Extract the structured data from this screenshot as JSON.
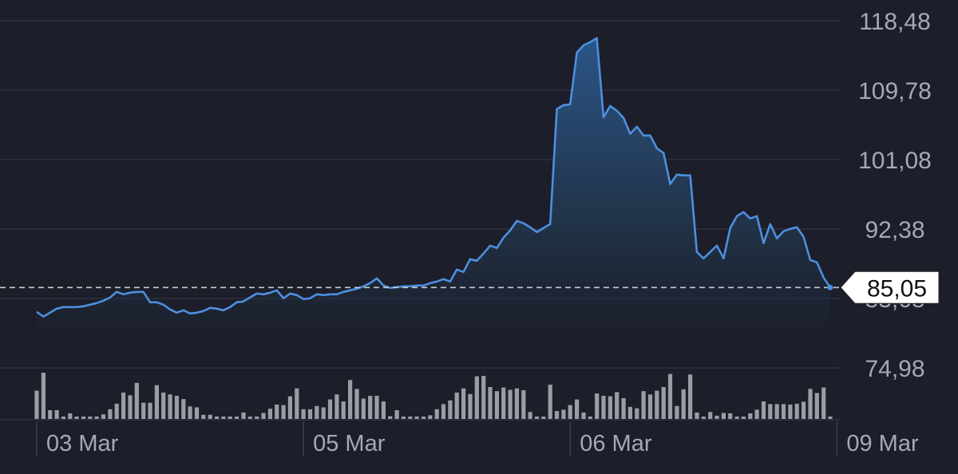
{
  "chart_data": {
    "type": "line",
    "grid": true,
    "ylim": [
      74.98,
      118.48
    ],
    "y_ticks": [
      "118,48",
      "109,78",
      "101,08",
      "92,38",
      "83,68",
      "74,98"
    ],
    "x_ticks": [
      {
        "label": "03 Mar",
        "index": 0
      },
      {
        "label": "05 Mar",
        "index": 40
      },
      {
        "label": "06 Mar",
        "index": 80
      },
      {
        "label": "09 Mar",
        "index": 120
      }
    ],
    "last_value": 85.05,
    "last_value_label": "85,05",
    "colors": {
      "line": "#4d8fe0",
      "volume": "#9a9ca6",
      "grid": "#2e3140",
      "label_bg": "#ffffff"
    },
    "price": [
      82.0,
      81.4,
      81.9,
      82.4,
      82.6,
      82.6,
      82.6,
      82.7,
      82.9,
      83.1,
      83.4,
      83.8,
      84.5,
      84.2,
      84.4,
      84.5,
      84.5,
      83.2,
      83.2,
      82.9,
      82.3,
      81.9,
      82.2,
      81.8,
      81.9,
      82.1,
      82.5,
      82.4,
      82.2,
      82.6,
      83.2,
      83.3,
      83.8,
      84.3,
      84.2,
      84.4,
      84.7,
      83.7,
      84.3,
      84.1,
      83.6,
      83.7,
      84.2,
      84.1,
      84.2,
      84.2,
      84.5,
      84.7,
      84.9,
      85.2,
      85.6,
      86.2,
      85.3,
      85.0,
      85.1,
      85.2,
      85.2,
      85.3,
      85.3,
      85.6,
      85.8,
      86.1,
      85.8,
      87.3,
      87.0,
      88.6,
      88.4,
      89.3,
      90.3,
      90.0,
      91.3,
      92.2,
      93.4,
      93.1,
      92.6,
      92.0,
      92.5,
      93.0,
      107.4,
      107.9,
      108.0,
      114.5,
      115.4,
      115.8,
      116.3,
      106.4,
      107.8,
      107.2,
      106.3,
      104.3,
      105.2,
      104.1,
      104.1,
      102.5,
      101.9,
      98.0,
      99.2,
      99.1,
      99.1,
      89.5,
      88.7,
      89.5,
      90.3,
      88.7,
      92.5,
      94.0,
      94.5,
      93.7,
      94.0,
      90.6,
      93.0,
      91.2,
      92.1,
      92.4,
      92.6,
      91.4,
      88.5,
      88.2,
      86.3,
      85.05
    ],
    "volume": [
      0.61,
      1.0,
      0.19,
      0.19,
      0.0,
      0.12,
      0.02,
      0.02,
      0.02,
      0.05,
      0.1,
      0.21,
      0.33,
      0.57,
      0.51,
      0.78,
      0.35,
      0.35,
      0.73,
      0.57,
      0.53,
      0.5,
      0.43,
      0.27,
      0.25,
      0.09,
      0.09,
      0.0,
      0.0,
      0.0,
      0.0,
      0.14,
      0.05,
      0.05,
      0.13,
      0.22,
      0.31,
      0.3,
      0.49,
      0.66,
      0.21,
      0.21,
      0.28,
      0.25,
      0.42,
      0.53,
      0.38,
      0.84,
      0.65,
      0.44,
      0.5,
      0.5,
      0.38,
      0.06,
      0.19,
      0.0,
      0.0,
      0.03,
      0.0,
      0.08,
      0.21,
      0.32,
      0.4,
      0.57,
      0.66,
      0.54,
      0.92,
      0.93,
      0.69,
      0.6,
      0.68,
      0.63,
      0.66,
      0.62,
      0.15,
      0.05,
      0.0,
      0.74,
      0.17,
      0.2,
      0.3,
      0.42,
      0.14,
      0.0,
      0.55,
      0.5,
      0.49,
      0.58,
      0.45,
      0.26,
      0.23,
      0.6,
      0.53,
      0.61,
      0.69,
      0.97,
      0.28,
      0.64,
      0.96,
      0.14,
      0.0,
      0.15,
      0.07,
      0.13,
      0.12,
      0.0,
      0.05,
      0.12,
      0.2,
      0.38,
      0.32,
      0.32,
      0.32,
      0.31,
      0.33,
      0.37,
      0.65,
      0.56,
      0.68,
      0.04
    ]
  }
}
